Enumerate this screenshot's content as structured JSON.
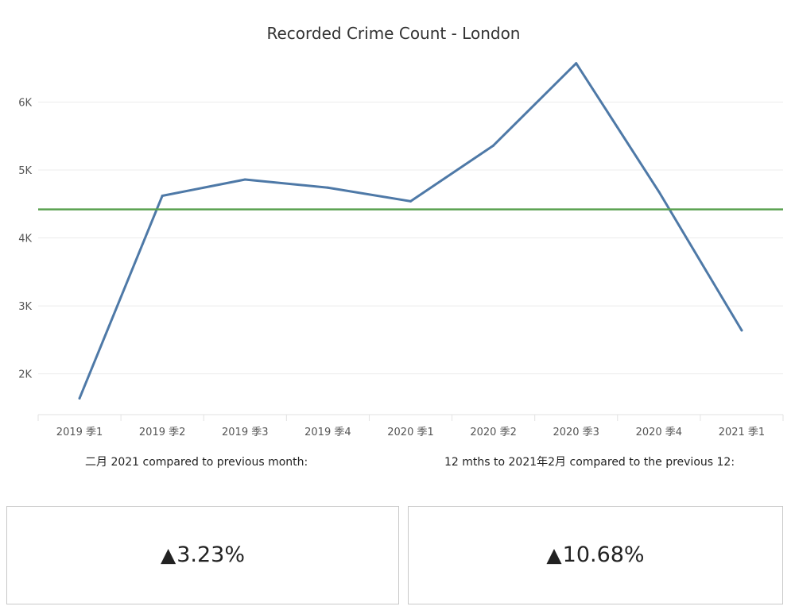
{
  "chart_data": {
    "type": "line",
    "title": "Recorded Crime Count - London",
    "categories": [
      "2019 季1",
      "2019 季2",
      "2019 季3",
      "2019 季4",
      "2020 季1",
      "2020 季2",
      "2020 季3",
      "2020 季4",
      "2021 季1"
    ],
    "series": [
      {
        "values": [
          1640,
          4620,
          4860,
          4740,
          4540,
          5360,
          6570,
          4680,
          2640
        ],
        "color": "#4e79a7"
      }
    ],
    "reference_line": {
      "value": 4420,
      "color": "#59a14f"
    },
    "y_ticks": [
      2000,
      3000,
      4000,
      5000,
      6000
    ],
    "y_tick_labels": [
      "2K",
      "3K",
      "4K",
      "5K",
      "6K"
    ],
    "ylim": [
      1400,
      6800
    ],
    "grid": true
  },
  "captions": {
    "left": "二月 2021 compared to previous month:",
    "right": "12 mths to 2021年2月 compared to the previous 12:"
  },
  "kpis": {
    "left": {
      "arrow": "▲",
      "value": "3.23%"
    },
    "right": {
      "arrow": "▲",
      "value": "10.68%"
    }
  }
}
